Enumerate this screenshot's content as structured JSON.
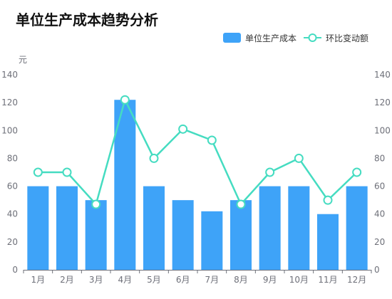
{
  "chart_data": {
    "type": "bar",
    "title": "单位生产成本趋势分析",
    "categories": [
      "1月",
      "2月",
      "3月",
      "4月",
      "5月",
      "6月",
      "7月",
      "8月",
      "9月",
      "10月",
      "11月",
      "12月"
    ],
    "series": [
      {
        "name": "单位生产成本",
        "type": "bar",
        "color": "#3ea3f8",
        "values": [
          60,
          60,
          50,
          122,
          60,
          50,
          42,
          50,
          60,
          60,
          40,
          60
        ]
      },
      {
        "name": "环比变动额",
        "type": "line",
        "color": "#45dcc1",
        "values": [
          70,
          70,
          47,
          122,
          80,
          101,
          93,
          47,
          70,
          80,
          50,
          70
        ]
      }
    ],
    "ylabel": "元",
    "ylim": [
      0,
      140
    ],
    "yticks": [
      0,
      20,
      40,
      60,
      80,
      100,
      120,
      140
    ],
    "y2ticks": [
      0,
      20,
      40,
      60,
      80,
      100,
      120,
      140
    ],
    "grid": false,
    "legend_position": "top-right"
  }
}
